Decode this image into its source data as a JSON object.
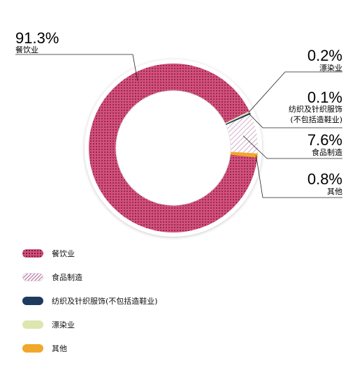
{
  "chart_data": {
    "type": "pie",
    "donut": true,
    "slices": [
      {
        "label": "餐饮业",
        "value": 91.3,
        "pct_label": "91.3%",
        "color": "#cf4a77",
        "pattern": "dots"
      },
      {
        "label": "漂染业",
        "value": 0.2,
        "pct_label": "0.2%",
        "color": "#dce7b0",
        "pattern": "solid"
      },
      {
        "label": "纺织及针织服饰(不包括造鞋业)",
        "callout_lines": [
          "纺织及针织服饰",
          "(不包括造鞋业)"
        ],
        "value": 0.1,
        "pct_label": "0.1%",
        "color": "#1e3a5f",
        "pattern": "solid"
      },
      {
        "label": "食品制造",
        "value": 7.6,
        "pct_label": "7.6%",
        "color": "#c9a0bf",
        "pattern": "hatch"
      },
      {
        "label": "其他",
        "value": 0.8,
        "pct_label": "0.8%",
        "color": "#f0a72b",
        "pattern": "solid"
      }
    ],
    "legend": {
      "position": "bottom-left",
      "items": [
        {
          "label": "餐饮业",
          "slice": 0
        },
        {
          "label": "食品制造",
          "slice": 3
        },
        {
          "label": "纺织及针织服饰(不包括造鞋业)",
          "slice": 2
        },
        {
          "label": "漂染业",
          "slice": 1
        },
        {
          "label": "其他",
          "slice": 4
        }
      ]
    }
  }
}
